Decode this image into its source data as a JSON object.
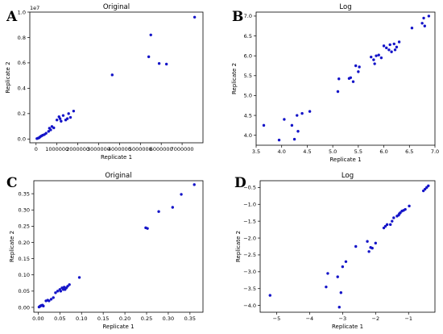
{
  "figure": {
    "chart_data": [
      {
        "letter": "A",
        "type": "scatter",
        "title": "Original",
        "xlabel": "Replicate 1",
        "ylabel": "Replicate 2",
        "y_exponent_label": "1e7",
        "xlim": [
          -300000,
          8000000
        ],
        "ylim": [
          -300000,
          10000000
        ],
        "xticks": [
          0,
          1000000,
          2000000,
          3000000,
          4000000,
          5000000,
          6000000,
          7000000
        ],
        "xtick_labels": [
          "0",
          "1000000",
          "2000000",
          "3000000",
          "4000000",
          "5000000",
          "6000000",
          "7000000"
        ],
        "yticks": [
          0,
          2000000,
          4000000,
          6000000,
          8000000,
          10000000
        ],
        "ytick_labels": [
          "0.0",
          "0.2",
          "0.4",
          "0.6",
          "0.8",
          "1.0"
        ],
        "points": [
          [
            40000,
            30000
          ],
          [
            90000,
            60000
          ],
          [
            150000,
            100000
          ],
          [
            200000,
            180000
          ],
          [
            260000,
            240000
          ],
          [
            320000,
            300000
          ],
          [
            400000,
            350000
          ],
          [
            480000,
            450000
          ],
          [
            600000,
            600000
          ],
          [
            640000,
            850000
          ],
          [
            700000,
            720000
          ],
          [
            760000,
            980000
          ],
          [
            850000,
            880000
          ],
          [
            1000000,
            1500000
          ],
          [
            1100000,
            1750000
          ],
          [
            1150000,
            1600000
          ],
          [
            1200000,
            1400000
          ],
          [
            1300000,
            1850000
          ],
          [
            1420000,
            1500000
          ],
          [
            1500000,
            1600000
          ],
          [
            1560000,
            2000000
          ],
          [
            1650000,
            1700000
          ],
          [
            1800000,
            2200000
          ],
          [
            3650000,
            5050000
          ],
          [
            5400000,
            6480000
          ],
          [
            5500000,
            8200000
          ],
          [
            5900000,
            5950000
          ],
          [
            6250000,
            5900000
          ],
          [
            7600000,
            9600000
          ]
        ]
      },
      {
        "letter": "B",
        "type": "scatter",
        "title": "Log",
        "xlabel": "Replicate 1",
        "ylabel": "Replicate 2",
        "xlim": [
          3.5,
          7.0
        ],
        "ylim": [
          3.75,
          7.1
        ],
        "xticks": [
          3.5,
          4.0,
          4.5,
          5.0,
          5.5,
          6.0,
          6.5,
          7.0
        ],
        "xtick_labels": [
          "3.5",
          "4.0",
          "4.5",
          "5.0",
          "5.5",
          "6.0",
          "6.5",
          "7.0"
        ],
        "yticks": [
          4.0,
          4.5,
          5.0,
          5.5,
          6.0,
          6.5,
          7.0
        ],
        "ytick_labels": [
          "4.0",
          "4.5",
          "5.0",
          "5.5",
          "6.0",
          "6.5",
          "7.0"
        ],
        "points": [
          [
            3.65,
            4.25
          ],
          [
            3.95,
            3.88
          ],
          [
            4.05,
            4.4
          ],
          [
            4.2,
            4.25
          ],
          [
            4.25,
            3.9
          ],
          [
            4.3,
            4.5
          ],
          [
            4.32,
            4.1
          ],
          [
            4.4,
            4.55
          ],
          [
            4.55,
            4.6
          ],
          [
            5.1,
            5.1
          ],
          [
            5.12,
            5.42
          ],
          [
            5.32,
            5.43
          ],
          [
            5.35,
            5.45
          ],
          [
            5.4,
            5.35
          ],
          [
            5.45,
            5.75
          ],
          [
            5.5,
            5.6
          ],
          [
            5.52,
            5.72
          ],
          [
            5.75,
            5.97
          ],
          [
            5.8,
            5.9
          ],
          [
            5.82,
            5.8
          ],
          [
            5.85,
            6.0
          ],
          [
            5.9,
            6.02
          ],
          [
            5.95,
            5.95
          ],
          [
            6.0,
            6.25
          ],
          [
            6.05,
            6.2
          ],
          [
            6.1,
            6.15
          ],
          [
            6.12,
            6.28
          ],
          [
            6.15,
            6.1
          ],
          [
            6.2,
            6.3
          ],
          [
            6.22,
            6.15
          ],
          [
            6.25,
            6.22
          ],
          [
            6.3,
            6.35
          ],
          [
            6.55,
            6.7
          ],
          [
            6.75,
            6.82
          ],
          [
            6.78,
            6.95
          ],
          [
            6.8,
            6.75
          ],
          [
            6.88,
            7.0
          ]
        ]
      },
      {
        "letter": "C",
        "type": "scatter",
        "title": "Original",
        "xlabel": "Replicate 1",
        "ylabel": "Replicate 2",
        "xlim": [
          -0.01,
          0.38
        ],
        "ylim": [
          -0.015,
          0.39
        ],
        "xticks": [
          0.0,
          0.05,
          0.1,
          0.15,
          0.2,
          0.25,
          0.3,
          0.35
        ],
        "xtick_labels": [
          "0.00",
          "0.05",
          "0.10",
          "0.15",
          "0.20",
          "0.25",
          "0.30",
          "0.35"
        ],
        "yticks": [
          0.0,
          0.05,
          0.1,
          0.15,
          0.2,
          0.25,
          0.3,
          0.35
        ],
        "ytick_labels": [
          "0.00",
          "0.05",
          "0.10",
          "0.15",
          "0.20",
          "0.25",
          "0.30",
          "0.35"
        ],
        "points": [
          [
            0.002,
            0.001
          ],
          [
            0.004,
            0.003
          ],
          [
            0.006,
            0.005
          ],
          [
            0.008,
            0.006
          ],
          [
            0.01,
            0.007
          ],
          [
            0.012,
            0.004
          ],
          [
            0.018,
            0.02
          ],
          [
            0.022,
            0.022
          ],
          [
            0.025,
            0.02
          ],
          [
            0.03,
            0.025
          ],
          [
            0.035,
            0.03
          ],
          [
            0.04,
            0.045
          ],
          [
            0.045,
            0.05
          ],
          [
            0.05,
            0.055
          ],
          [
            0.052,
            0.05
          ],
          [
            0.055,
            0.06
          ],
          [
            0.058,
            0.055
          ],
          [
            0.06,
            0.062
          ],
          [
            0.062,
            0.055
          ],
          [
            0.065,
            0.06
          ],
          [
            0.068,
            0.065
          ],
          [
            0.072,
            0.07
          ],
          [
            0.095,
            0.092
          ],
          [
            0.248,
            0.245
          ],
          [
            0.252,
            0.243
          ],
          [
            0.278,
            0.295
          ],
          [
            0.31,
            0.308
          ],
          [
            0.33,
            0.348
          ],
          [
            0.36,
            0.378
          ]
        ]
      },
      {
        "letter": "D",
        "type": "scatter",
        "title": "Log",
        "xlabel": "Replicate 1",
        "ylabel": "Replicate 2",
        "xlim": [
          -5.5,
          -0.2
        ],
        "ylim": [
          -4.2,
          -0.3
        ],
        "xticks": [
          -5,
          -4,
          -3,
          -2,
          -1
        ],
        "xtick_labels": [
          "−5",
          "−4",
          "−3",
          "−2",
          "−1"
        ],
        "yticks": [
          -4.0,
          -3.5,
          -3.0,
          -2.5,
          -2.0,
          -1.5,
          -1.0,
          -0.5
        ],
        "ytick_labels": [
          "−4.0",
          "−3.5",
          "−3.0",
          "−2.5",
          "−2.0",
          "−1.5",
          "−1.0",
          "−0.5"
        ],
        "points": [
          [
            -5.2,
            -3.7
          ],
          [
            -3.5,
            -3.45
          ],
          [
            -3.45,
            -3.05
          ],
          [
            -3.15,
            -3.15
          ],
          [
            -3.1,
            -4.05
          ],
          [
            -3.05,
            -3.62
          ],
          [
            -3.0,
            -2.85
          ],
          [
            -2.9,
            -2.7
          ],
          [
            -2.6,
            -2.25
          ],
          [
            -2.25,
            -2.1
          ],
          [
            -2.2,
            -2.4
          ],
          [
            -2.15,
            -2.28
          ],
          [
            -2.1,
            -2.3
          ],
          [
            -2.0,
            -2.15
          ],
          [
            -1.75,
            -1.7
          ],
          [
            -1.7,
            -1.65
          ],
          [
            -1.65,
            -1.6
          ],
          [
            -1.55,
            -1.6
          ],
          [
            -1.5,
            -1.5
          ],
          [
            -1.45,
            -1.4
          ],
          [
            -1.35,
            -1.35
          ],
          [
            -1.3,
            -1.32
          ],
          [
            -1.28,
            -1.28
          ],
          [
            -1.25,
            -1.25
          ],
          [
            -1.2,
            -1.2
          ],
          [
            -1.15,
            -1.18
          ],
          [
            -1.1,
            -1.15
          ],
          [
            -0.98,
            -1.05
          ],
          [
            -0.55,
            -0.6
          ],
          [
            -0.5,
            -0.55
          ],
          [
            -0.45,
            -0.5
          ],
          [
            -0.4,
            -0.45
          ]
        ]
      }
    ]
  }
}
